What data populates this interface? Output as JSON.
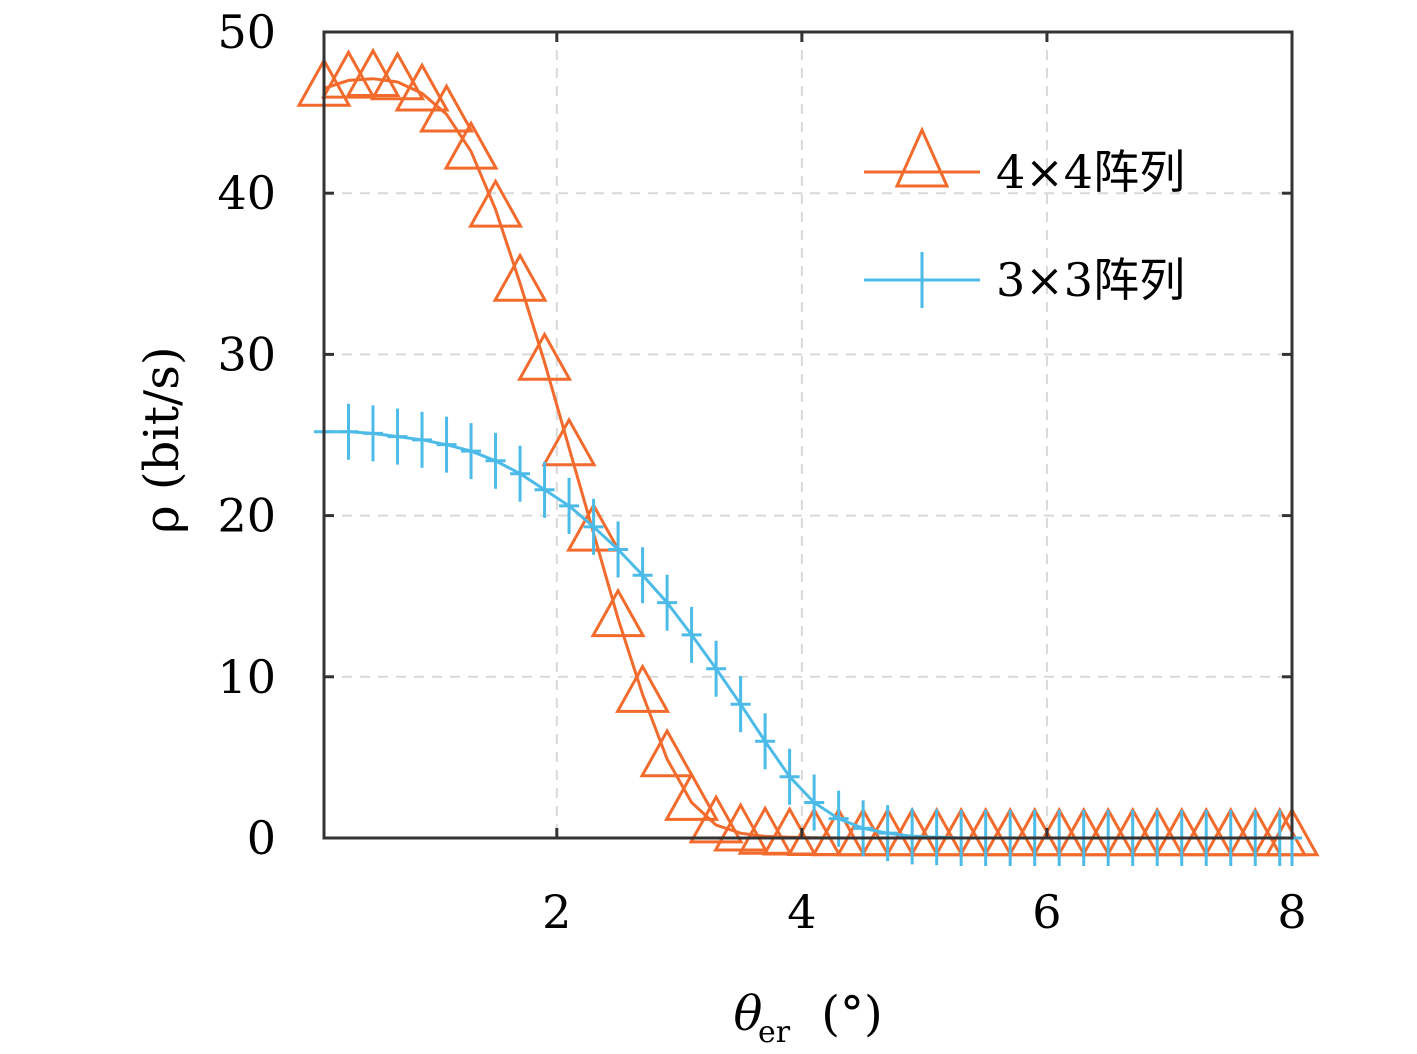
{
  "chart_data": {
    "type": "line",
    "title": "",
    "xlabel": "θ",
    "xlabel_sub": "er",
    "xlabel_unit": "(°)",
    "ylabel": "ρ (bit/s)",
    "xlim": [
      0.1,
      8.0
    ],
    "ylim": [
      0,
      50
    ],
    "xticks": [
      2,
      4,
      6,
      8
    ],
    "yticks": [
      0,
      10,
      20,
      30,
      40,
      50
    ],
    "grid": true,
    "legend_position": "top-right",
    "colors": {
      "series_4x4": "#f26b2d",
      "series_3x3": "#4dbbe8",
      "axis": "#333333",
      "grid": "#d9d9d9"
    },
    "series": [
      {
        "name": "4×4阵列",
        "marker": "triangle",
        "color": "#f26b2d",
        "x": [
          0.1,
          0.3,
          0.5,
          0.7,
          0.9,
          1.1,
          1.3,
          1.5,
          1.7,
          1.9,
          2.1,
          2.3,
          2.5,
          2.7,
          2.9,
          3.1,
          3.3,
          3.5,
          3.7,
          3.9,
          4.1,
          4.3,
          4.5,
          4.7,
          4.9,
          5.1,
          5.3,
          5.5,
          5.7,
          5.9,
          6.1,
          6.3,
          6.5,
          6.7,
          6.9,
          7.1,
          7.3,
          7.5,
          7.7,
          7.9,
          8.0
        ],
        "y": [
          46.5,
          47.0,
          47.1,
          46.9,
          46.2,
          44.9,
          42.6,
          39.0,
          34.4,
          29.5,
          24.2,
          18.9,
          13.6,
          8.9,
          4.9,
          2.2,
          0.8,
          0.3,
          0.1,
          0.05,
          0.02,
          0,
          0,
          0,
          0,
          0,
          0,
          0,
          0,
          0,
          0,
          0,
          0,
          0,
          0,
          0,
          0,
          0,
          0,
          0,
          0
        ]
      },
      {
        "name": "3×3阵列",
        "marker": "plus",
        "color": "#4dbbe8",
        "x": [
          0.1,
          0.3,
          0.5,
          0.7,
          0.9,
          1.1,
          1.3,
          1.5,
          1.7,
          1.9,
          2.1,
          2.3,
          2.5,
          2.7,
          2.9,
          3.1,
          3.3,
          3.5,
          3.7,
          3.9,
          4.1,
          4.3,
          4.5,
          4.7,
          4.9,
          5.1,
          5.3,
          5.5,
          5.7,
          5.9,
          6.1,
          6.3,
          6.5,
          6.7,
          6.9,
          7.1,
          7.3,
          7.5,
          7.7,
          7.9,
          8.0
        ],
        "y": [
          25.2,
          25.2,
          25.1,
          24.9,
          24.7,
          24.4,
          24.0,
          23.4,
          22.6,
          21.6,
          20.6,
          19.3,
          17.9,
          16.3,
          14.6,
          12.6,
          10.5,
          8.3,
          6.0,
          3.8,
          2.2,
          1.2,
          0.6,
          0.3,
          0.1,
          0.05,
          0,
          0,
          0,
          0,
          0,
          0,
          0,
          0,
          0,
          0,
          0,
          0,
          0,
          0,
          0
        ]
      }
    ]
  }
}
